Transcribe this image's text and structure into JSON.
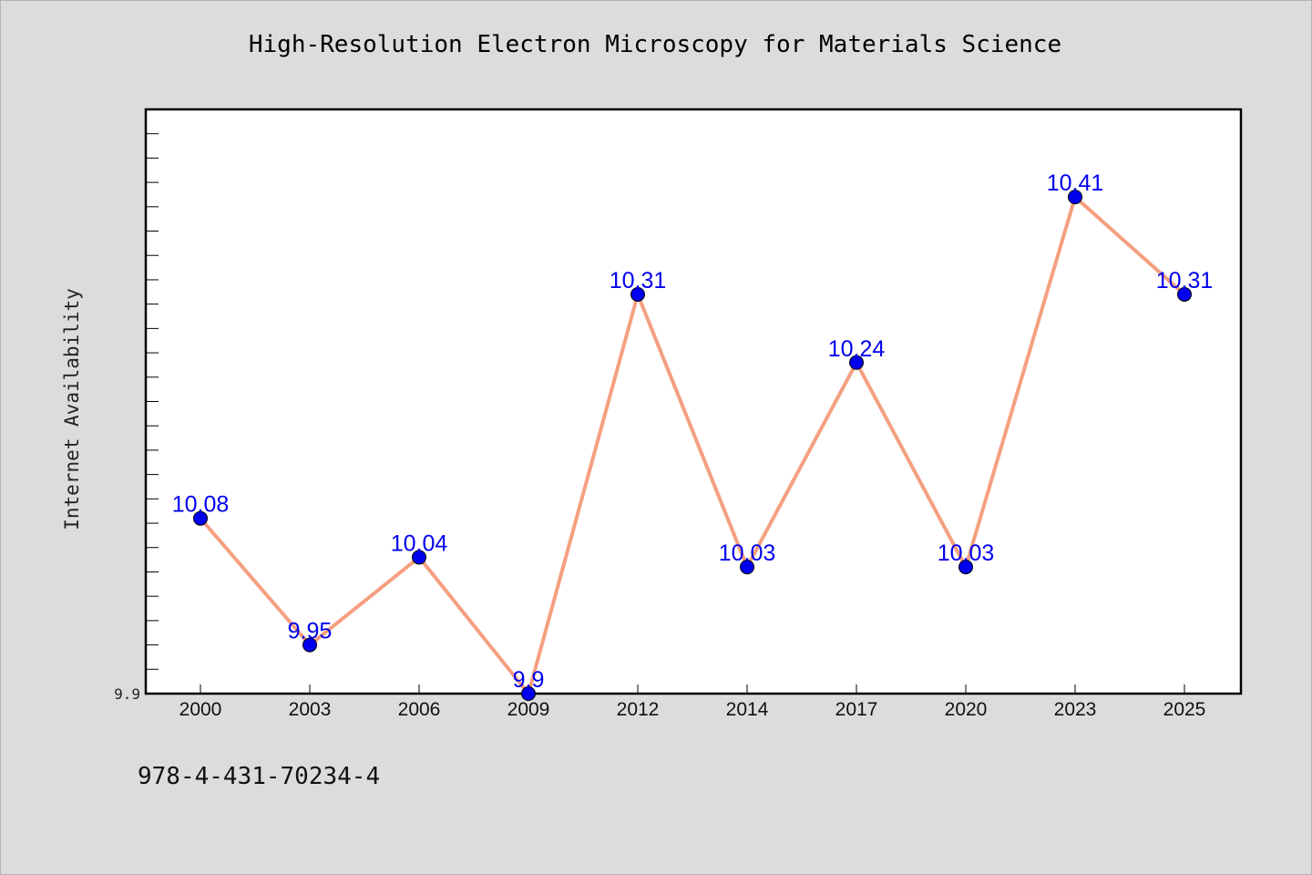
{
  "chart_data": {
    "type": "line",
    "title": "High-Resolution Electron Microscopy for Materials Science",
    "xlabel": "",
    "ylabel": "Internet Availability",
    "categories": [
      "2000",
      "2003",
      "2006",
      "2009",
      "2012",
      "2014",
      "2017",
      "2020",
      "2023",
      "2025"
    ],
    "values": [
      10.08,
      9.95,
      10.04,
      9.9,
      10.31,
      10.03,
      10.24,
      10.03,
      10.41,
      10.31
    ],
    "data_labels": [
      "10.08",
      "9.95",
      "10.04",
      "9.9",
      "10.31",
      "10.03",
      "10.24",
      "10.03",
      "10.41",
      "10.31"
    ],
    "ytick_labels": [
      "9.9"
    ],
    "ylim": [
      9.9,
      10.5
    ],
    "grid": false,
    "line_color": "#f4a080",
    "marker_color": "#0000ee",
    "label_color": "#0000ee"
  },
  "footer": {
    "isbn": "978-4-431-70234-4"
  }
}
